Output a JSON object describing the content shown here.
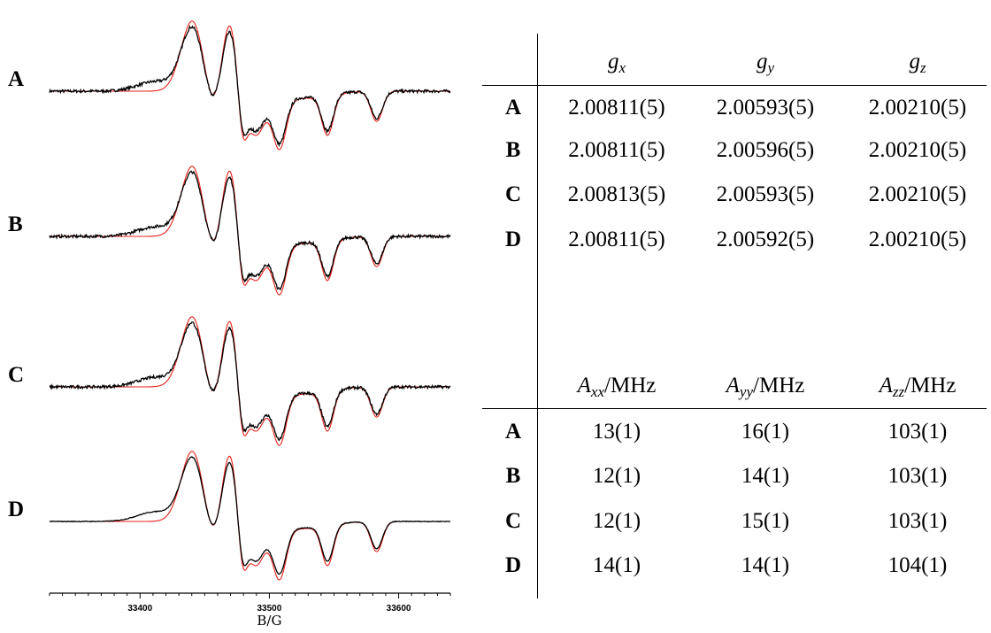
{
  "chart_data": {
    "type": "line",
    "xlabel": "B/G",
    "xlim": [
      33330,
      33640
    ],
    "xticks": [
      33400,
      33500,
      33600
    ],
    "grid": false,
    "panels": [
      {
        "label": "A",
        "series": [
          {
            "color": "#000000"
          },
          {
            "color": "#e8201a"
          }
        ]
      },
      {
        "label": "B",
        "series": [
          {
            "color": "#000000"
          },
          {
            "color": "#e8201a"
          }
        ]
      },
      {
        "label": "C",
        "series": [
          {
            "color": "#000000"
          },
          {
            "color": "#e8201a"
          }
        ]
      },
      {
        "label": "D",
        "series": [
          {
            "color": "#000000"
          },
          {
            "color": "#e8201a"
          }
        ]
      }
    ],
    "features_G": {
      "positive_peaks": [
        33442,
        33470
      ],
      "crossover": 33476,
      "negative_peaks": [
        33488,
        33508,
        33545,
        33583
      ]
    }
  },
  "g_table": {
    "col_headers": [
      {
        "main": "g",
        "sub": "x"
      },
      {
        "main": "g",
        "sub": "y"
      },
      {
        "main": "g",
        "sub": "z"
      }
    ],
    "rows": [
      {
        "label": "A",
        "values": [
          "2.00811(5)",
          "2.00593(5)",
          "2.00210(5)"
        ]
      },
      {
        "label": "B",
        "values": [
          "2.00811(5)",
          "2.00596(5)",
          "2.00210(5)"
        ]
      },
      {
        "label": "C",
        "values": [
          "2.00813(5)",
          "2.00593(5)",
          "2.00210(5)"
        ]
      },
      {
        "label": "D",
        "values": [
          "2.00811(5)",
          "2.00592(5)",
          "2.00210(5)"
        ]
      }
    ]
  },
  "a_table": {
    "col_headers": [
      {
        "main": "A",
        "sub": "xx",
        "unit": "/MHz"
      },
      {
        "main": "A",
        "sub": "yy",
        "unit": "/MHz"
      },
      {
        "main": "A",
        "sub": "zz",
        "unit": "/MHz"
      }
    ],
    "rows": [
      {
        "label": "A",
        "values": [
          "13(1)",
          "16(1)",
          "103(1)"
        ]
      },
      {
        "label": "B",
        "values": [
          "12(1)",
          "14(1)",
          "103(1)"
        ]
      },
      {
        "label": "C",
        "values": [
          "12(1)",
          "15(1)",
          "103(1)"
        ]
      },
      {
        "label": "D",
        "values": [
          "14(1)",
          "14(1)",
          "104(1)"
        ]
      }
    ]
  }
}
